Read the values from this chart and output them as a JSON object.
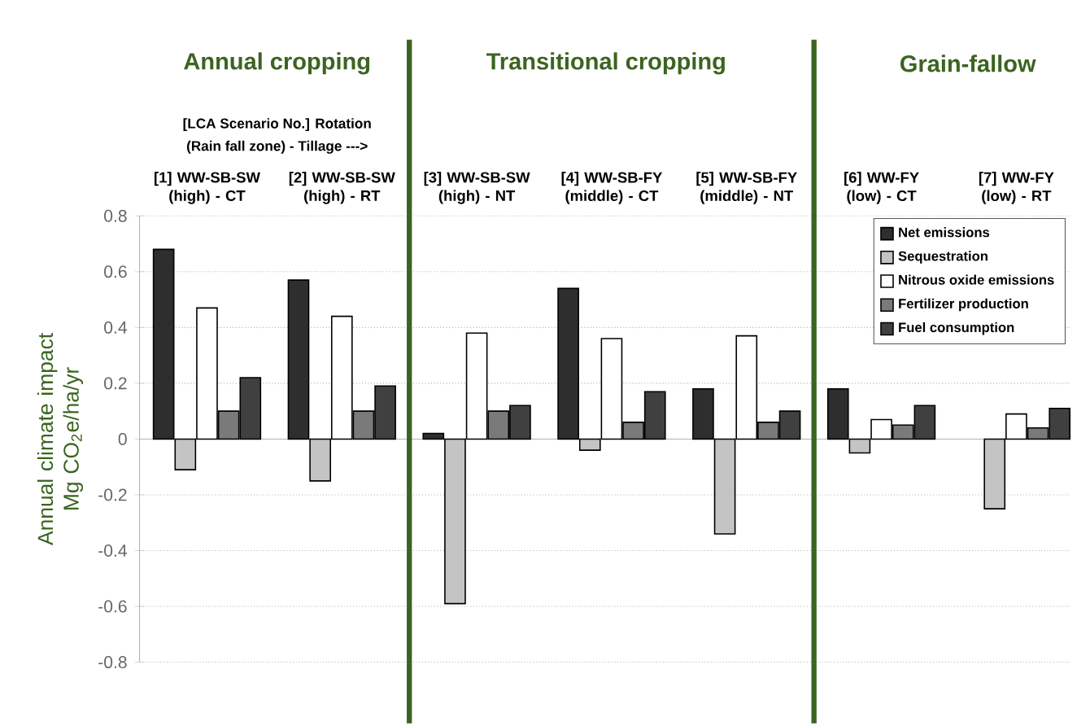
{
  "chart_data": {
    "type": "bar",
    "ylabel": "Annual climate impact Mg CO$_{2}$e/ha/yr",
    "annotations": [
      "Annual cropping",
      "Transitional cropping",
      "Grain-fallow",
      "[LCA Scenario  No.]  Rotation",
      "(Rain fall zone) - Tillage  --->"
    ],
    "categories": [
      "[1] WW-SB-SW (high) - CT",
      "[2] WW-SB-SW (high) - RT",
      "[3] WW-SB-SW (high) - NT",
      "[4] WW-SB-FY (middle) - CT",
      "[5] WW-SB-FY (middle) - NT",
      "[6] WW-FY (low) - CT",
      "[7] WW-FY (low) - RT"
    ],
    "series": [
      {
        "name": "Net emissions",
        "color": "#2e2e2e",
        "values": [
          0.68,
          0.57,
          0.02,
          0.54,
          0.18,
          0.18,
          null
        ]
      },
      {
        "name": "Sequestration",
        "color": "#c4c4c4",
        "values": [
          -0.11,
          -0.15,
          -0.59,
          -0.04,
          -0.34,
          -0.05,
          -0.25
        ]
      },
      {
        "name": "Nitrous oxide emissions",
        "color": "#ffffff",
        "values": [
          0.47,
          0.44,
          0.38,
          0.36,
          0.37,
          0.07,
          0.09
        ]
      },
      {
        "name": "Fertilizer production",
        "color": "#7a7a7a",
        "values": [
          0.1,
          0.1,
          0.1,
          0.06,
          0.06,
          0.05,
          0.04
        ]
      },
      {
        "name": "Fuel consumption",
        "color": "#404040",
        "values": [
          0.22,
          0.19,
          0.12,
          0.17,
          0.1,
          0.12,
          0.11
        ]
      }
    ],
    "ylim": [
      -0.8,
      0.8
    ],
    "yticks": [
      -0.8,
      -0.6,
      -0.4,
      -0.2,
      0,
      0.2,
      0.4,
      0.6,
      0.8
    ],
    "grid": "y",
    "legend": "top right"
  }
}
